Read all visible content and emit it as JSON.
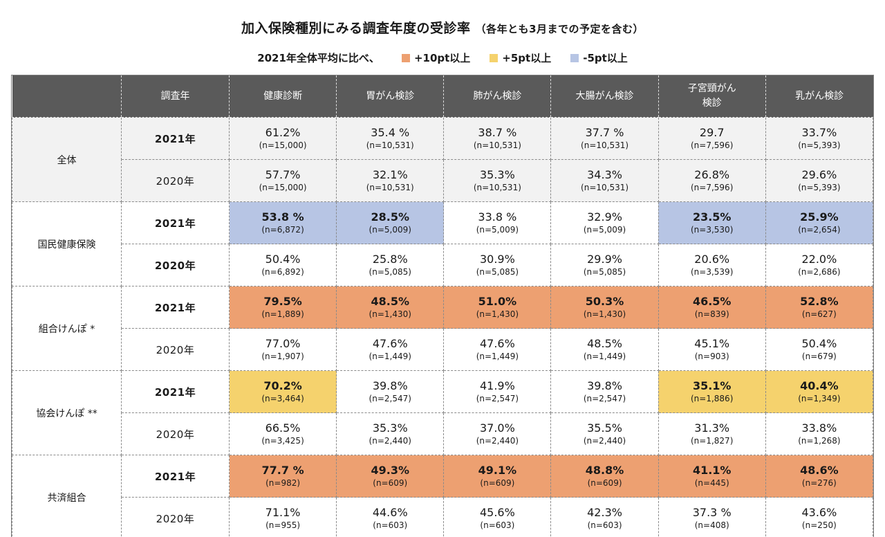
{
  "chart_data": {
    "type": "table",
    "title": "加入保険種別にみる調査年度の受診率",
    "title_note": "（各年とも3月までの予定を含む）",
    "legend": {
      "prefix": "2021年全体平均に比べ、",
      "items": [
        {
          "key": "plus10",
          "label": "+10pt以上",
          "color": "#EDA071"
        },
        {
          "key": "plus5",
          "label": "+5pt以上",
          "color": "#F5D26D"
        },
        {
          "key": "minus5",
          "label": "-5pt以上",
          "color": "#B7C5E4"
        }
      ]
    },
    "columns": [
      "調査年",
      "健康診断",
      "胃がん検診",
      "肺がん検診",
      "大腸がん検診",
      "子宮頸がん\n検診",
      "乳がん検診"
    ],
    "groups": [
      {
        "label": "全体",
        "shaded": true,
        "rows": [
          {
            "year": "2021年",
            "bold": true,
            "cells": [
              {
                "value": "61.2%",
                "n": "(n=15,000)",
                "hl": "none"
              },
              {
                "value": "35.4 %",
                "n": "(n=10,531)",
                "hl": "none"
              },
              {
                "value": "38.7 %",
                "n": "(n=10,531)",
                "hl": "none"
              },
              {
                "value": "37.7 %",
                "n": "(n=10,531)",
                "hl": "none"
              },
              {
                "value": "29.7",
                "n": "(n=7,596)",
                "hl": "none"
              },
              {
                "value": "33.7%",
                "n": "(n=5,393)",
                "hl": "none"
              }
            ]
          },
          {
            "year": "2020年",
            "bold": false,
            "cells": [
              {
                "value": "57.7%",
                "n": "(n=15,000)",
                "hl": "none"
              },
              {
                "value": "32.1%",
                "n": "(n=10,531)",
                "hl": "none"
              },
              {
                "value": "35.3%",
                "n": "(n=10,531)",
                "hl": "none"
              },
              {
                "value": "34.3%",
                "n": "(n=10,531)",
                "hl": "none"
              },
              {
                "value": "26.8%",
                "n": "(n=7,596)",
                "hl": "none"
              },
              {
                "value": "29.6%",
                "n": "(n=5,393)",
                "hl": "none"
              }
            ]
          }
        ]
      },
      {
        "label": "国民健康保険",
        "shaded": false,
        "rows": [
          {
            "year": "2021年",
            "bold": true,
            "cells": [
              {
                "value": "53.8 %",
                "n": "(n=6,872)",
                "hl": "minus5"
              },
              {
                "value": "28.5%",
                "n": "(n=5,009)",
                "hl": "minus5"
              },
              {
                "value": "33.8 %",
                "n": "(n=5,009)",
                "hl": "none"
              },
              {
                "value": "32.9%",
                "n": "(n=5,009)",
                "hl": "none"
              },
              {
                "value": "23.5%",
                "n": "(n=3,530)",
                "hl": "minus5"
              },
              {
                "value": "25.9%",
                "n": "(n=2,654)",
                "hl": "minus5"
              }
            ]
          },
          {
            "year": "2020年",
            "bold": true,
            "cells": [
              {
                "value": "50.4%",
                "n": "(n=6,892)",
                "hl": "none"
              },
              {
                "value": "25.8%",
                "n": "(n=5,085)",
                "hl": "none"
              },
              {
                "value": "30.9%",
                "n": "(n=5,085)",
                "hl": "none"
              },
              {
                "value": "29.9%",
                "n": "(n=5,085)",
                "hl": "none"
              },
              {
                "value": "20.6%",
                "n": "(n=3,539)",
                "hl": "none"
              },
              {
                "value": "22.0%",
                "n": "(n=2,686)",
                "hl": "none"
              }
            ]
          }
        ]
      },
      {
        "label": "組合けんぽ *",
        "shaded": false,
        "rows": [
          {
            "year": "2021年",
            "bold": true,
            "cells": [
              {
                "value": "79.5%",
                "n": "(n=1,889)",
                "hl": "plus10"
              },
              {
                "value": "48.5%",
                "n": "(n=1,430)",
                "hl": "plus10"
              },
              {
                "value": "51.0%",
                "n": "(n=1,430)",
                "hl": "plus10"
              },
              {
                "value": "50.3%",
                "n": "(n=1,430)",
                "hl": "plus10"
              },
              {
                "value": "46.5%",
                "n": "(n=839)",
                "hl": "plus10"
              },
              {
                "value": "52.8%",
                "n": "(n=627)",
                "hl": "plus10"
              }
            ]
          },
          {
            "year": "2020年",
            "bold": false,
            "cells": [
              {
                "value": "77.0%",
                "n": "(n=1,907)",
                "hl": "none"
              },
              {
                "value": "47.6%",
                "n": "(n=1,449)",
                "hl": "none"
              },
              {
                "value": "47.6%",
                "n": "(n=1,449)",
                "hl": "none"
              },
              {
                "value": "48.5%",
                "n": "(n=1,449)",
                "hl": "none"
              },
              {
                "value": "45.1%",
                "n": "(n=903)",
                "hl": "none"
              },
              {
                "value": "50.4%",
                "n": "(n=679)",
                "hl": "none"
              }
            ]
          }
        ]
      },
      {
        "label": "協会けんぽ **",
        "shaded": false,
        "rows": [
          {
            "year": "2021年",
            "bold": true,
            "cells": [
              {
                "value": "70.2%",
                "n": "(n=3,464)",
                "hl": "plus5"
              },
              {
                "value": "39.8%",
                "n": "(n=2,547)",
                "hl": "none"
              },
              {
                "value": "41.9%",
                "n": "(n=2,547)",
                "hl": "none"
              },
              {
                "value": "39.8%",
                "n": "(n=2,547)",
                "hl": "none"
              },
              {
                "value": "35.1%",
                "n": "(n=1,886)",
                "hl": "plus5"
              },
              {
                "value": "40.4%",
                "n": "(n=1,349)",
                "hl": "plus5"
              }
            ]
          },
          {
            "year": "2020年",
            "bold": false,
            "cells": [
              {
                "value": "66.5%",
                "n": "(n=3,425)",
                "hl": "none"
              },
              {
                "value": "35.3%",
                "n": "(n=2,440)",
                "hl": "none"
              },
              {
                "value": "37.0%",
                "n": "(n=2,440)",
                "hl": "none"
              },
              {
                "value": "35.5%",
                "n": "(n=2,440)",
                "hl": "none"
              },
              {
                "value": "31.3%",
                "n": "(n=1,827)",
                "hl": "none"
              },
              {
                "value": "33.8%",
                "n": "(n=1,268)",
                "hl": "none"
              }
            ]
          }
        ]
      },
      {
        "label": "共済組合",
        "shaded": false,
        "rows": [
          {
            "year": "2021年",
            "bold": true,
            "cells": [
              {
                "value": "77.7 %",
                "n": "(n=982)",
                "hl": "plus10"
              },
              {
                "value": "49.3%",
                "n": "(n=609)",
                "hl": "plus10"
              },
              {
                "value": "49.1%",
                "n": "(n=609)",
                "hl": "plus10"
              },
              {
                "value": "48.8%",
                "n": "(n=609)",
                "hl": "plus10"
              },
              {
                "value": "41.1%",
                "n": "(n=445)",
                "hl": "plus10"
              },
              {
                "value": "48.6%",
                "n": "(n=276)",
                "hl": "plus10"
              }
            ]
          },
          {
            "year": "2020年",
            "bold": false,
            "cells": [
              {
                "value": "71.1%",
                "n": "(n=955)",
                "hl": "none"
              },
              {
                "value": "44.6%",
                "n": "(n=603)",
                "hl": "none"
              },
              {
                "value": "45.6%",
                "n": "(n=603)",
                "hl": "none"
              },
              {
                "value": "42.3%",
                "n": "(n=603)",
                "hl": "none"
              },
              {
                "value": "37.3 %",
                "n": "(n=408)",
                "hl": "none"
              },
              {
                "value": "43.6%",
                "n": "(n=250)",
                "hl": "none"
              }
            ]
          }
        ]
      }
    ]
  }
}
